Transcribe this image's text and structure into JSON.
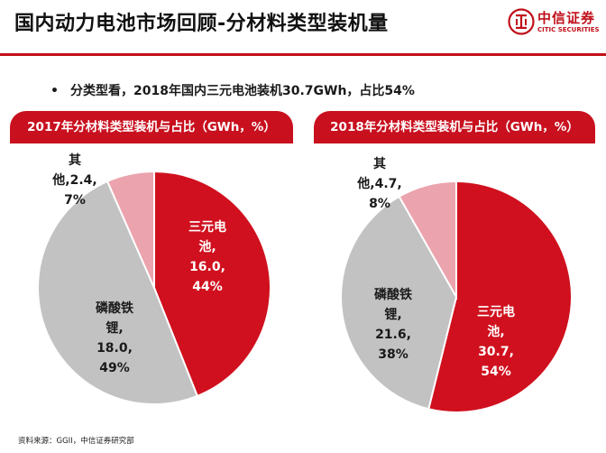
{
  "page": {
    "title": "国内动力电池市场回顾-分材料类型装机量",
    "bullet": "分类型看，2018年国内三元电池装机30.7GWh，占比54%",
    "source": "资料来源：GGII，中信证券研究部"
  },
  "logo": {
    "cn": "中信证券",
    "en": "CITIC SECURITIES"
  },
  "colors": {
    "accent": "#c8101e",
    "ncm": "#d0101e",
    "lfp": "#c2c2c2",
    "other": "#eba3ad"
  },
  "chart_data": [
    {
      "type": "pie",
      "title": "2017年分材料类型装机与占比（GWh，%）",
      "slices": [
        {
          "name": "三元电池",
          "value": 16.0,
          "pct": 44,
          "label_lines": [
            "三元电",
            "池,",
            "16.0,",
            "44%"
          ]
        },
        {
          "name": "磷酸铁锂",
          "value": 18.0,
          "pct": 49,
          "label_lines": [
            "磷酸铁",
            "锂,",
            "18.0,",
            "49%"
          ]
        },
        {
          "name": "其他",
          "value": 2.4,
          "pct": 7,
          "label_lines": [
            "其",
            "他,2.4,",
            "7%"
          ]
        }
      ]
    },
    {
      "type": "pie",
      "title": "2018年分材料类型装机与占比（GWh，%）",
      "slices": [
        {
          "name": "三元电池",
          "value": 30.7,
          "pct": 54,
          "label_lines": [
            "三元电",
            "池,",
            "30.7,",
            "54%"
          ]
        },
        {
          "name": "磷酸铁锂",
          "value": 21.6,
          "pct": 38,
          "label_lines": [
            "磷酸铁",
            "锂,",
            "21.6,",
            "38%"
          ]
        },
        {
          "name": "其他",
          "value": 4.7,
          "pct": 8,
          "label_lines": [
            "其",
            "他,4.7,",
            "8%"
          ]
        }
      ]
    }
  ]
}
